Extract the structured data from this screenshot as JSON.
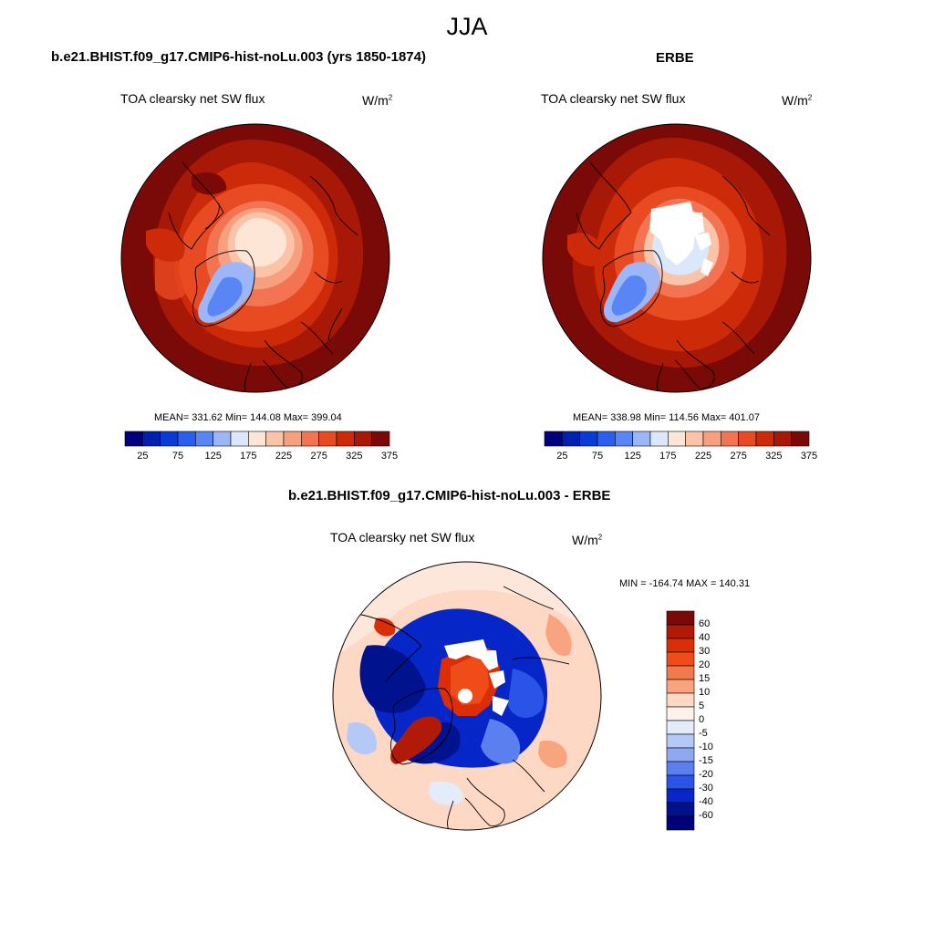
{
  "figure": {
    "title": "JJA"
  },
  "panels": [
    {
      "title": "b.e21.BHIST.f09_g17.CMIP6-hist-noLu.003 (yrs 1850-1874)",
      "variable_label": "TOA clearsky net SW flux",
      "units_base": "W/m",
      "units_exp": "2",
      "stats": "MEAN= 331.62  Min= 144.08  Max= 399.04",
      "colorbar_ticks": [
        "25",
        "75",
        "125",
        "175",
        "225",
        "275",
        "325",
        "375"
      ]
    },
    {
      "title": "ERBE",
      "variable_label": "TOA clearsky net SW flux",
      "units_base": "W/m",
      "units_exp": "2",
      "stats": "MEAN= 338.98  Min= 114.56  Max= 401.07",
      "colorbar_ticks": [
        "25",
        "75",
        "125",
        "175",
        "225",
        "275",
        "325",
        "375"
      ]
    },
    {
      "title": "b.e21.BHIST.f09_g17.CMIP6-hist-noLu.003 - ERBE",
      "variable_label": "TOA clearsky net SW flux",
      "units_base": "W/m",
      "units_exp": "2",
      "stats": "MIN = -164.74 MAX = 140.31",
      "colorbar_ticks": [
        "60",
        "40",
        "30",
        "20",
        "15",
        "10",
        "5",
        "0",
        "-5",
        "-10",
        "-15",
        "-20",
        "-30",
        "-40",
        "-60"
      ]
    }
  ],
  "colors": {
    "abs_scale": [
      "#00007f",
      "#0020b0",
      "#0a3ad8",
      "#2a5ef0",
      "#5a86f5",
      "#9cb6f7",
      "#dbe8fb",
      "#fde6d6",
      "#fbc4a8",
      "#f7a07f",
      "#f37452",
      "#e84a22",
      "#cc2a08",
      "#a81806",
      "#7a0a08"
    ],
    "diff_scale": [
      "#7a0a08",
      "#b01a06",
      "#dc2e06",
      "#f04c1a",
      "#f4794a",
      "#f8a47e",
      "#fdd8c4",
      "#fdf2ea",
      "#e2ecfb",
      "#b5c9f6",
      "#8ea9f2",
      "#5b7fee",
      "#2a53e8",
      "#0626c8",
      "#00128e",
      "#00007a"
    ]
  }
}
